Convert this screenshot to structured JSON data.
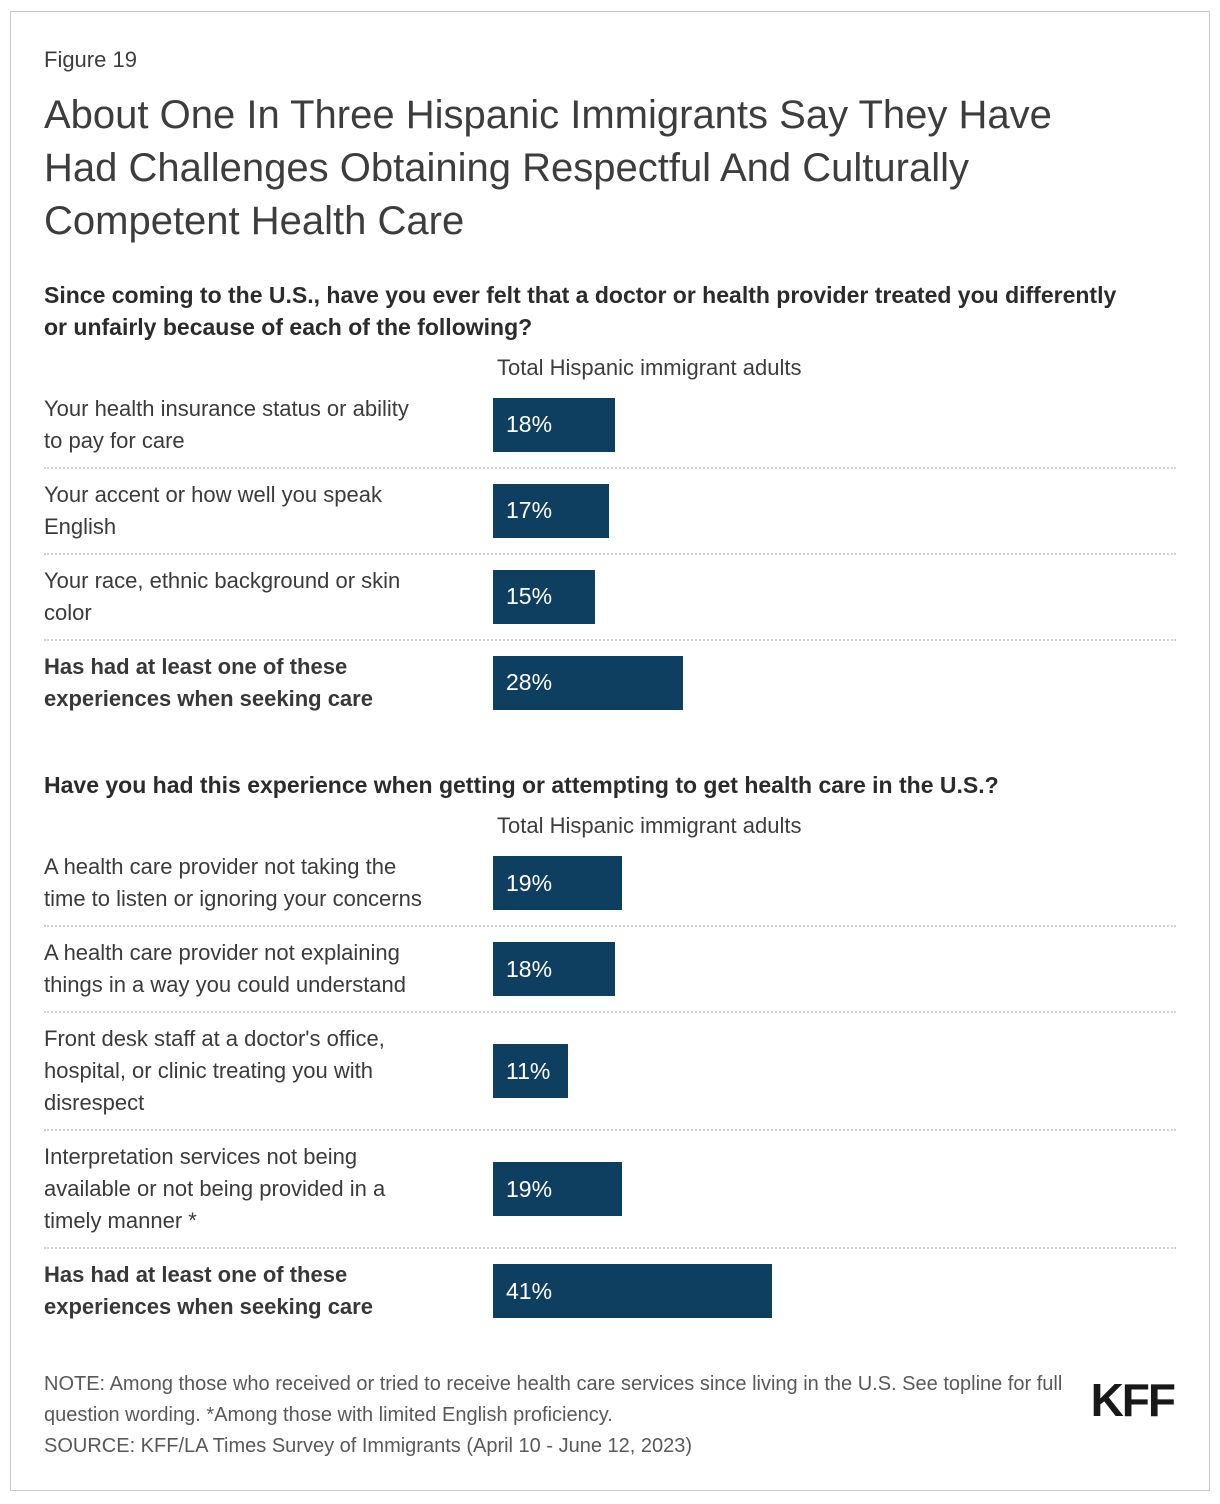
{
  "page": {
    "figure_label": "Figure 19",
    "title": "About One In Three Hispanic Immigrants Say They Have Had Challenges Obtaining Respectful And Culturally Competent Health Care"
  },
  "colors": {
    "bar": "#0e3f61",
    "label_text": "#3b3b3b",
    "footer_text": "#595959"
  },
  "chart_data": [
    {
      "type": "bar",
      "question": "Since coming to the U.S., have you ever felt that a doctor or health provider treated you differently or unfairly because of each of the following?",
      "column_header": "Total Hispanic immigrant adults",
      "unit": "%",
      "xlim": [
        0,
        100
      ],
      "categories": [
        "Your health insurance status or ability to pay for care",
        "Your accent or how well you speak English",
        "Your race, ethnic background or skin color",
        "Has had at least one of these experiences when seeking care"
      ],
      "values": [
        18,
        17,
        15,
        28
      ],
      "value_labels": [
        "18%",
        "17%",
        "15%",
        "28%"
      ],
      "emphasis": [
        false,
        false,
        false,
        true
      ]
    },
    {
      "type": "bar",
      "question": "Have you had this experience when getting or attempting to get health care in the U.S.?",
      "column_header": "Total Hispanic immigrant adults",
      "unit": "%",
      "xlim": [
        0,
        100
      ],
      "categories": [
        "A health care provider not taking the time to listen or ignoring your concerns",
        "A health care provider not explaining things in a way you could understand",
        "Front desk staff at a doctor's office, hospital, or clinic treating you with disrespect",
        "Interpretation services not being available or not being provided in a timely manner *",
        "Has had at least one of these experiences when seeking care"
      ],
      "values": [
        19,
        18,
        11,
        19,
        41
      ],
      "value_labels": [
        "19%",
        "18%",
        "11%",
        "19%",
        "41%"
      ],
      "emphasis": [
        false,
        false,
        false,
        false,
        true
      ]
    }
  ],
  "footer": {
    "note": "NOTE: Among those who received or tried to receive health care services since living in the U.S. See topline for full question wording. *Among those with limited English proficiency.",
    "source": "SOURCE: KFF/LA Times Survey of Immigrants (April 10 - June 12, 2023)",
    "logo": "KFF"
  }
}
